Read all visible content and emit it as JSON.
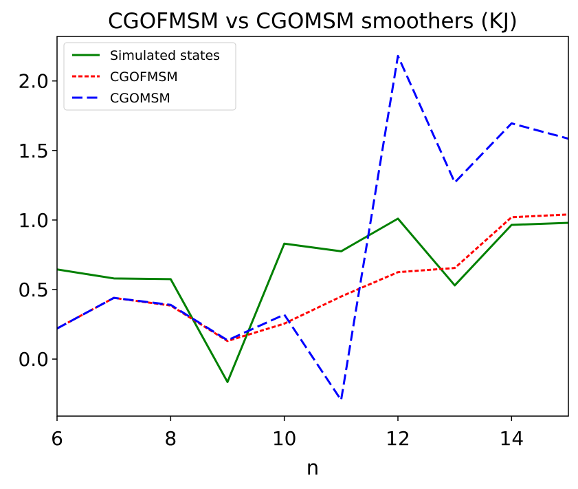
{
  "chart_data": {
    "type": "line",
    "title": "CGOFMSM vs CGOMSM smoothers (KJ)",
    "xlabel": "n",
    "ylabel": "",
    "xlim": [
      6,
      15
    ],
    "ylim": [
      -0.41,
      2.32
    ],
    "x_ticks": [
      6,
      8,
      10,
      12,
      14
    ],
    "x_tick_labels": [
      "6",
      "8",
      "10",
      "12",
      "14"
    ],
    "y_ticks": [
      0.0,
      0.5,
      1.0,
      1.5,
      2.0
    ],
    "y_tick_labels": [
      "0.0",
      "0.5",
      "1.0",
      "1.5",
      "2.0"
    ],
    "grid": false,
    "legend_position": "top-left",
    "x": [
      6,
      7,
      8,
      9,
      10,
      11,
      12,
      13,
      14,
      15
    ],
    "series": [
      {
        "name": "Simulated states",
        "color": "#008000",
        "dash": "solid",
        "values": [
          0.645,
          0.58,
          0.575,
          -0.165,
          0.83,
          0.775,
          1.01,
          0.53,
          0.965,
          0.98
        ]
      },
      {
        "name": "CGOFMSM",
        "color": "#ff0000",
        "dash": "dotted",
        "values": [
          0.22,
          0.44,
          0.385,
          0.13,
          0.255,
          0.45,
          0.625,
          0.655,
          1.02,
          1.04
        ]
      },
      {
        "name": "CGOMSM",
        "color": "#0000ff",
        "dash": "dashed",
        "values": [
          0.22,
          0.44,
          0.39,
          0.135,
          0.32,
          -0.295,
          2.18,
          1.27,
          1.695,
          1.585
        ]
      }
    ]
  }
}
